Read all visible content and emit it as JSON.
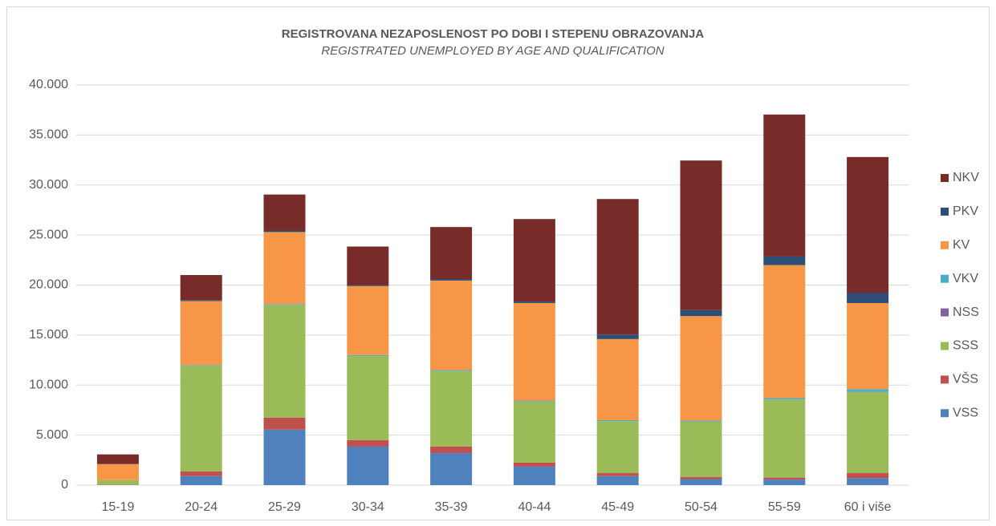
{
  "chart_data": {
    "type": "bar",
    "stacked": true,
    "title": "REGISTROVANA NEZAPOSLENOST PO DOBI I STEPENU OBRAZOVANJA",
    "subtitle": "REGISTRATED UNEMPLOYED BY AGE AND QUALIFICATION",
    "categories": [
      "15-19",
      "20-24",
      "25-29",
      "30-34",
      "35-39",
      "40-44",
      "45-49",
      "50-54",
      "55-59",
      "60 i više"
    ],
    "series": [
      {
        "name": "VSS",
        "color": "#4f81bd",
        "values": [
          0,
          900,
          5550,
          3850,
          3200,
          1850,
          900,
          600,
          550,
          700
        ]
      },
      {
        "name": "VŠS",
        "color": "#c0504d",
        "values": [
          30,
          460,
          1200,
          650,
          650,
          400,
          300,
          200,
          200,
          500
        ]
      },
      {
        "name": "SSS",
        "color": "#9bbb59",
        "values": [
          470,
          10600,
          11250,
          8400,
          7550,
          6100,
          5200,
          5550,
          7800,
          8100
        ]
      },
      {
        "name": "NSS",
        "color": "#8064a2",
        "values": [
          0,
          10,
          10,
          10,
          10,
          10,
          10,
          10,
          10,
          20
        ]
      },
      {
        "name": "VKV",
        "color": "#4bacc6",
        "values": [
          0,
          50,
          90,
          90,
          90,
          90,
          90,
          90,
          140,
          280
        ]
      },
      {
        "name": "KV",
        "color": "#f79646",
        "values": [
          1600,
          6380,
          7200,
          6900,
          8950,
          9750,
          8100,
          10450,
          13300,
          8600
        ]
      },
      {
        "name": "PKV",
        "color": "#2c4d75",
        "values": [
          20,
          100,
          150,
          100,
          150,
          150,
          450,
          600,
          850,
          1000
        ]
      },
      {
        "name": "NKV",
        "color": "#772c2a",
        "values": [
          950,
          2500,
          3600,
          3850,
          5200,
          8250,
          13550,
          14950,
          14200,
          13600
        ]
      }
    ],
    "ylim": [
      0,
      40000
    ],
    "yticks": [
      0,
      {
        "value": 5000,
        "label": "5.000"
      },
      {
        "value": 10000,
        "label": "10.000"
      },
      {
        "value": 15000,
        "label": "15.000"
      },
      {
        "value": 20000,
        "label": "20.000"
      },
      {
        "value": 25000,
        "label": "25.000"
      },
      {
        "value": 30000,
        "label": "30.000"
      },
      {
        "value": 35000,
        "label": "35.000"
      },
      {
        "value": 40000,
        "label": "40.000"
      }
    ],
    "grid": true,
    "legend": "right"
  }
}
